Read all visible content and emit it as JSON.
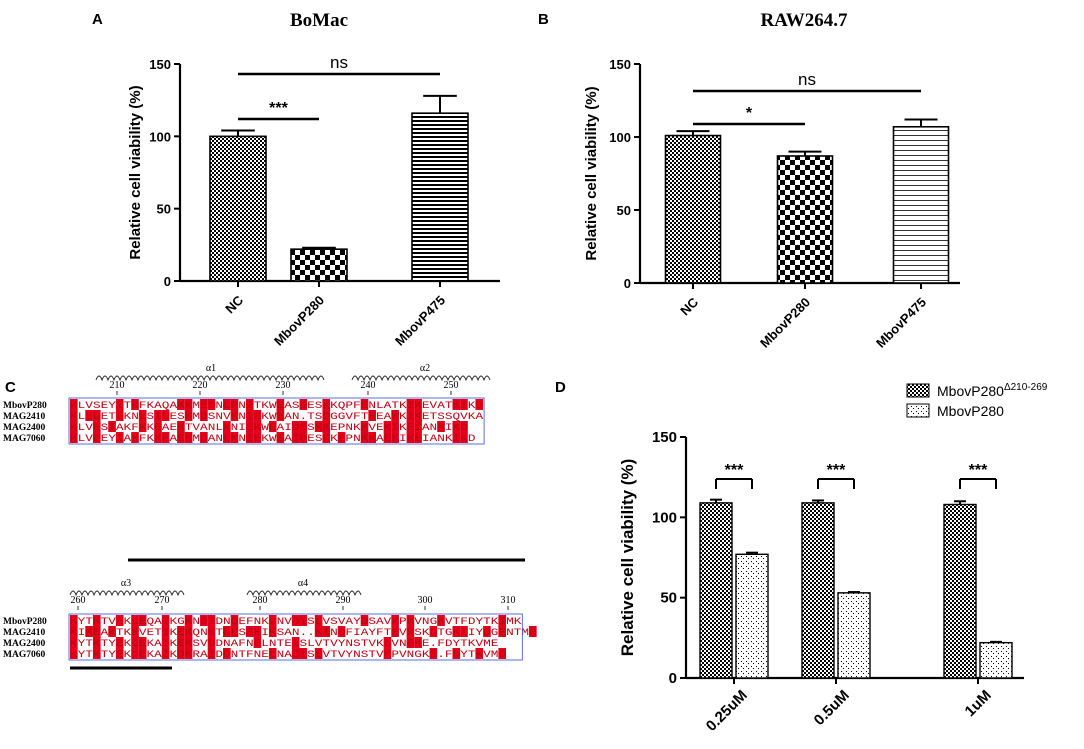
{
  "panels": {
    "A": {
      "label": "A"
    },
    "B": {
      "label": "B"
    },
    "C": {
      "label": "C"
    },
    "D": {
      "label": "D"
    }
  },
  "chart_data": [
    {
      "id": "A",
      "type": "bar",
      "title": "BoMac",
      "ylabel": "Relative cell viability (%)",
      "xlabel": "",
      "categories": [
        "NC",
        "MbovP280",
        "MbovP475"
      ],
      "values": [
        100,
        22,
        116
      ],
      "errors": [
        4,
        1,
        12
      ],
      "ylim": [
        0,
        150
      ],
      "yticks": [
        0,
        50,
        100,
        150
      ],
      "annotations": [
        {
          "text": "***",
          "from": "NC",
          "to": "MbovP280"
        },
        {
          "text": "ns",
          "from": "NC",
          "to": "MbovP475"
        }
      ]
    },
    {
      "id": "B",
      "type": "bar",
      "title": "RAW264.7",
      "ylabel": "Relative cell viability (%)",
      "xlabel": "",
      "categories": [
        "NC",
        "MbovP280",
        "MbovP475"
      ],
      "values": [
        101,
        87,
        107
      ],
      "errors": [
        3,
        3,
        5
      ],
      "ylim": [
        0,
        150
      ],
      "yticks": [
        0,
        50,
        100,
        150
      ],
      "annotations": [
        {
          "text": "*",
          "from": "NC",
          "to": "MbovP280"
        },
        {
          "text": "ns",
          "from": "NC",
          "to": "MbovP475"
        }
      ]
    },
    {
      "id": "D",
      "type": "bar",
      "title": "",
      "ylabel": "Relative cell viability (%)",
      "xlabel": "",
      "categories": [
        "0.25uM",
        "0.5uM",
        "1uM"
      ],
      "series": [
        {
          "name": "MbovP280",
          "superscript": "Δ210-269",
          "values": [
            109,
            109,
            108
          ],
          "errors": [
            2,
            1.5,
            2
          ]
        },
        {
          "name": "MbovP280",
          "superscript": "",
          "values": [
            77,
            53,
            22
          ],
          "errors": [
            1,
            0.5,
            0.5
          ]
        }
      ],
      "ylim": [
        0,
        150
      ],
      "yticks": [
        0,
        50,
        100,
        150
      ],
      "annotations": [
        {
          "text": "***",
          "category": "0.25uM"
        },
        {
          "text": "***",
          "category": "0.5uM"
        },
        {
          "text": "***",
          "category": "1uM"
        }
      ]
    }
  ],
  "alignment": {
    "blocks": [
      {
        "structures": [
          {
            "label": "α1"
          },
          {
            "label": "α2"
          }
        ],
        "numbers": [
          "210",
          "220",
          "230",
          "240",
          "250"
        ],
        "rows": [
          {
            "name": "MbovP280",
            "seq": "KLVSEYITKFKAQAKKMEDNLRNITKWEASEESKKQPFENLATKIKEVATKIKD"
          },
          {
            "name": "MAG2410",
            "seq": "KLLDETLKNLSILESKMDSNVKNIEKWEAN.TSDGGVFTEEAKKIKETSSQVKA"
          },
          {
            "name": "MAG2400",
            "seq": "KLVESIAKFKKEAEKTVANLKNIEKWEAIDESKKEPNKKVEKIKEIANKIKD"
          },
          {
            "name": "MAG7060",
            "seq": "KLVEEYIAKFKKEAEKMDANLKNIEKWEAIDESKKEPNKKAEKIKEIANKIKD"
          }
        ]
      },
      {
        "structures": [
          {
            "label": "α3"
          },
          {
            "label": "α4"
          }
        ],
        "numbers": [
          "260",
          "270",
          "280",
          "290",
          "300",
          "310"
        ],
        "rows": [
          {
            "name": "MbovP280",
            "seq": "KYTKTVEKLEQAIKGKNDIDNDEFNKLNVDISLVSVAYDSAVKPKVNGKVTFDYTKIMK"
          },
          {
            "name": "MAG2410",
            "seq": "KIKEAKTKEVETIKEKQNKTKLSEEIKSAN..KINDFIAYFTEVKSKDTGKIIYDGENTMR"
          },
          {
            "name": "MAG2400",
            "seq": "KYTKTYEKLEKAIKEKSVDDNAFNELNTEISLVTVYNSTVKLVNEKE.FDYTKVME"
          },
          {
            "name": "MAG7060",
            "seq": "KYTKTYEKLEKAIKDKRAIDDNTFNELNAEISLVTVYNSTVKPVNGKE.FDYTKVMD"
          }
        ]
      }
    ]
  }
}
